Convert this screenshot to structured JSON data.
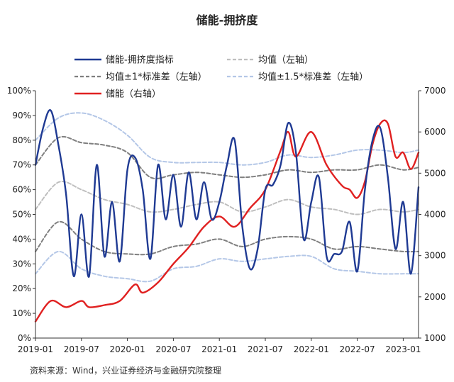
{
  "chart_data": {
    "type": "line",
    "title": "储能-拥挤度",
    "source": "资料来源：Wind，兴业证券经济与金融研究院整理",
    "x_ticks": [
      "2019-01",
      "2019-07",
      "2020-01",
      "2020-07",
      "2021-01",
      "2021-07",
      "2022-01",
      "2022-07",
      "2023-01"
    ],
    "x_range": [
      "2019-01",
      "2023-02"
    ],
    "y_left": {
      "range": [
        0,
        100
      ],
      "ticks": [
        "0%",
        "10%",
        "20%",
        "30%",
        "40%",
        "50%",
        "60%",
        "70%",
        "80%",
        "90%",
        "100%"
      ]
    },
    "y_right": {
      "range": [
        1000,
        7000
      ],
      "ticks": [
        "1000",
        "2000",
        "3000",
        "4000",
        "5000",
        "6000",
        "7000"
      ]
    },
    "legend": [
      {
        "name": "储能-拥挤度指标",
        "style": "solid",
        "color": "#1f3a93"
      },
      {
        "name": "均值（左轴）",
        "style": "dashed",
        "color": "#bfbfbf"
      },
      {
        "name": "均值±1*标准差（左轴）",
        "style": "dashed",
        "color": "#7f7f7f"
      },
      {
        "name": "均值±1.5*标准差（左轴）",
        "style": "dashed",
        "color": "#b4c7e7"
      },
      {
        "name": "储能（右轴）",
        "style": "solid",
        "color": "#e02020"
      }
    ],
    "series": [
      {
        "name": "储能-拥挤度指标",
        "axis": "left",
        "x": [
          0,
          1,
          2,
          3,
          4,
          5,
          6,
          7,
          8,
          9,
          10,
          11,
          12,
          13,
          14,
          15,
          16,
          17,
          18,
          19,
          20,
          21,
          22,
          23,
          24,
          25,
          26,
          27,
          28,
          29,
          30,
          31,
          32,
          33,
          34,
          35,
          36,
          37,
          38,
          39,
          40,
          41,
          42,
          43,
          44,
          45,
          46,
          47,
          48,
          49,
          50
        ],
        "y": [
          70,
          85,
          92,
          78,
          58,
          25,
          50,
          25,
          70,
          33,
          55,
          31,
          68,
          73,
          60,
          32,
          70,
          48,
          66,
          45,
          67,
          48,
          63,
          48,
          55,
          70,
          80,
          45,
          28,
          36,
          60,
          62,
          70,
          87,
          75,
          40,
          55,
          65,
          33,
          34,
          35,
          47,
          27,
          60,
          80,
          85,
          65,
          36,
          55,
          26,
          61
        ]
      },
      {
        "name": "均值（左轴）",
        "axis": "left",
        "x": [
          0,
          3,
          6,
          9,
          12,
          15,
          18,
          21,
          24,
          27,
          30,
          33,
          36,
          39,
          42,
          45,
          48,
          50
        ],
        "y": [
          52,
          63,
          60,
          56,
          54,
          51,
          52,
          54,
          55,
          51,
          53,
          56,
          53,
          52,
          50,
          52,
          51,
          52
        ]
      },
      {
        "name": "均值+1*标准差（左轴）",
        "axis": "left",
        "x": [
          0,
          3,
          6,
          9,
          12,
          15,
          18,
          21,
          24,
          27,
          30,
          33,
          36,
          39,
          42,
          45,
          48,
          50
        ],
        "y": [
          70,
          81,
          79,
          78,
          75,
          65,
          66,
          67,
          66,
          65,
          66,
          68,
          67,
          68,
          68,
          70,
          68,
          69
        ]
      },
      {
        "name": "均值-1*标准差（左轴）",
        "axis": "left",
        "x": [
          0,
          3,
          6,
          9,
          12,
          15,
          18,
          21,
          24,
          27,
          30,
          33,
          36,
          39,
          42,
          45,
          48,
          50
        ],
        "y": [
          35,
          47,
          40,
          35,
          34,
          34,
          37,
          38,
          40,
          37,
          40,
          41,
          40,
          36,
          37,
          36,
          35,
          35
        ]
      },
      {
        "name": "均值+1.5*标准差（左轴）",
        "axis": "left",
        "x": [
          0,
          3,
          6,
          9,
          12,
          15,
          18,
          21,
          24,
          27,
          30,
          33,
          36,
          39,
          42,
          45,
          48,
          50
        ],
        "y": [
          80,
          89,
          91,
          88,
          82,
          73,
          71,
          71,
          71,
          70,
          71,
          74,
          73,
          74,
          76,
          76,
          75,
          76
        ]
      },
      {
        "name": "均值-1.5*标准差（左轴）",
        "axis": "left",
        "x": [
          0,
          3,
          6,
          9,
          12,
          15,
          18,
          21,
          24,
          27,
          30,
          33,
          36,
          39,
          42,
          45,
          48,
          50
        ],
        "y": [
          26,
          35,
          28,
          25,
          24,
          23,
          28,
          29,
          32,
          31,
          32,
          33,
          33,
          28,
          27,
          26,
          26,
          26
        ]
      },
      {
        "name": "储能（右轴）",
        "axis": "right",
        "x": [
          0,
          2,
          4,
          6,
          7,
          9,
          11,
          13,
          14,
          16,
          18,
          20,
          22,
          24,
          26,
          28,
          30,
          32,
          33,
          34,
          36,
          38,
          40,
          41,
          42,
          43,
          44,
          45,
          46,
          47,
          48,
          49,
          50
        ],
        "y": [
          1400,
          1900,
          1750,
          1900,
          1750,
          1800,
          1900,
          2300,
          2100,
          2350,
          2800,
          3200,
          3700,
          3950,
          3700,
          4150,
          4600,
          5550,
          6000,
          5400,
          6000,
          5200,
          4700,
          4600,
          4400,
          4800,
          5700,
          6200,
          6200,
          5400,
          5500,
          5100,
          5500
        ]
      }
    ]
  }
}
